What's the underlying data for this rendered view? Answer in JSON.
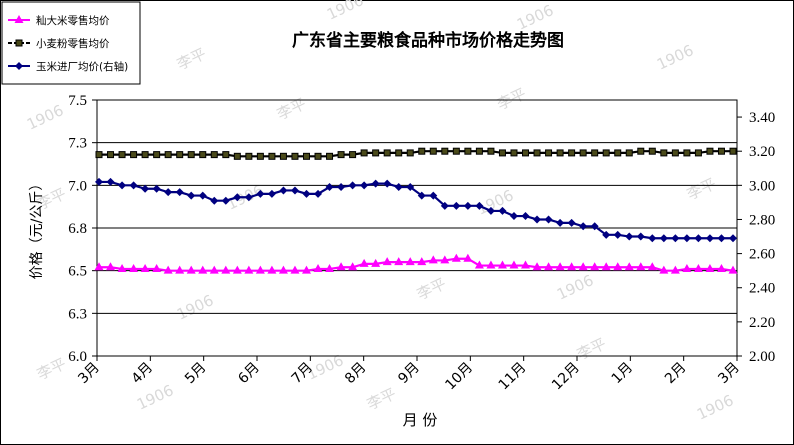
{
  "chart_data": {
    "type": "line",
    "title": "广东省主要粮食品种市场价格走势图",
    "xlabel": "月 份",
    "ylabel": "价格（元/公斤）",
    "x_tick_labels": [
      "3月",
      "4月",
      "5月",
      "6月",
      "7月",
      "8月",
      "9月",
      "10月",
      "11月",
      "12月",
      "1月",
      "2月",
      "3月"
    ],
    "ylim": [
      6.0,
      7.5
    ],
    "y_ticks": [
      "6.0",
      "6.3",
      "6.5",
      "6.8",
      "7.0",
      "7.3",
      "7.5"
    ],
    "y2lim": [
      2.0,
      3.5
    ],
    "y2_ticks": [
      "2.00",
      "2.20",
      "2.40",
      "2.60",
      "2.80",
      "3.00",
      "3.20",
      "3.40"
    ],
    "grid": "horizontal",
    "legend_position": "top-left",
    "watermark": [
      "1906",
      "李平"
    ],
    "series": [
      {
        "name": "籼大米零售均价",
        "axis": "left",
        "color": "#ff00ff",
        "marker": "triangle",
        "values": [
          6.52,
          6.52,
          6.51,
          6.51,
          6.51,
          6.51,
          6.5,
          6.5,
          6.5,
          6.5,
          6.5,
          6.5,
          6.5,
          6.5,
          6.5,
          6.5,
          6.5,
          6.5,
          6.5,
          6.51,
          6.51,
          6.52,
          6.52,
          6.54,
          6.54,
          6.55,
          6.55,
          6.55,
          6.55,
          6.56,
          6.56,
          6.57,
          6.57,
          6.53,
          6.53,
          6.53,
          6.53,
          6.53,
          6.52,
          6.52,
          6.52,
          6.52,
          6.52,
          6.52,
          6.52,
          6.52,
          6.52,
          6.52,
          6.52,
          6.5,
          6.5,
          6.51,
          6.51,
          6.51,
          6.51,
          6.5
        ]
      },
      {
        "name": "小麦粉零售均价",
        "axis": "left",
        "color": "#000000",
        "marker": "square",
        "values": [
          7.18,
          7.18,
          7.18,
          7.18,
          7.18,
          7.18,
          7.18,
          7.18,
          7.18,
          7.18,
          7.18,
          7.18,
          7.17,
          7.17,
          7.17,
          7.17,
          7.17,
          7.17,
          7.17,
          7.17,
          7.17,
          7.18,
          7.18,
          7.19,
          7.19,
          7.19,
          7.19,
          7.19,
          7.2,
          7.2,
          7.2,
          7.2,
          7.2,
          7.2,
          7.2,
          7.19,
          7.19,
          7.19,
          7.19,
          7.19,
          7.19,
          7.19,
          7.19,
          7.19,
          7.19,
          7.19,
          7.19,
          7.2,
          7.2,
          7.19,
          7.19,
          7.19,
          7.19,
          7.2,
          7.2,
          7.2
        ]
      },
      {
        "name": "玉米进厂均价(右轴)",
        "axis": "right",
        "color": "#000080",
        "marker": "diamond",
        "values": [
          3.02,
          3.02,
          3.0,
          3.0,
          2.98,
          2.98,
          2.96,
          2.96,
          2.94,
          2.94,
          2.91,
          2.91,
          2.93,
          2.93,
          2.95,
          2.95,
          2.97,
          2.97,
          2.95,
          2.95,
          2.99,
          2.99,
          3.0,
          3.0,
          3.01,
          3.01,
          2.99,
          2.99,
          2.94,
          2.94,
          2.88,
          2.88,
          2.88,
          2.88,
          2.85,
          2.85,
          2.82,
          2.82,
          2.8,
          2.8,
          2.78,
          2.78,
          2.76,
          2.76,
          2.71,
          2.71,
          2.7,
          2.7,
          2.69,
          2.69,
          2.69,
          2.69,
          2.69,
          2.69,
          2.69,
          2.69
        ]
      }
    ]
  }
}
